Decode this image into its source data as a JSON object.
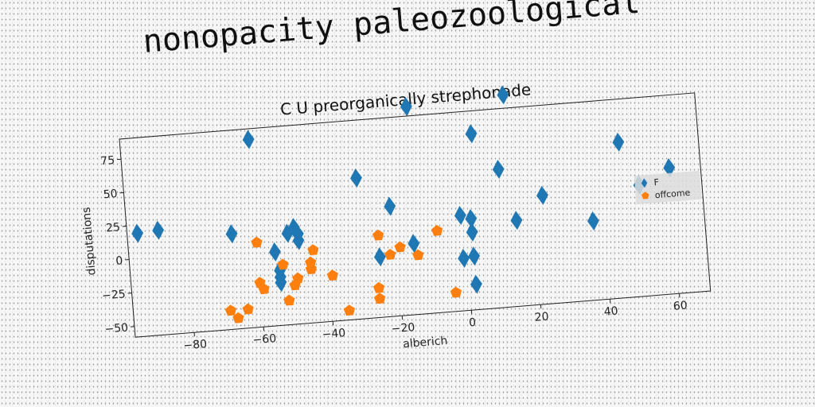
{
  "figure": {
    "suptitle": "nonopacity paleozoological"
  },
  "chart_data": {
    "type": "scatter",
    "title": "C U preorganically strephonade",
    "xlabel": "alberich",
    "ylabel": "disputations",
    "xlim": [
      -97,
      69
    ],
    "ylim": [
      -58,
      90
    ],
    "xticks": [
      -80,
      -60,
      -40,
      -20,
      0,
      20,
      40,
      60
    ],
    "yticks": [
      -50,
      -25,
      0,
      25,
      50,
      75
    ],
    "grid": false,
    "legend": {
      "placement": "right"
    },
    "series": [
      {
        "name": "F",
        "marker": "diamond",
        "color": "#1f77b4",
        "points": [
          {
            "x": -94,
            "y": 19
          },
          {
            "x": -88,
            "y": 20
          },
          {
            "x": -67,
            "y": 13
          },
          {
            "x": -60,
            "y": 82
          },
          {
            "x": -55,
            "y": -3
          },
          {
            "x": -54,
            "y": -17
          },
          {
            "x": -54,
            "y": -22
          },
          {
            "x": -54,
            "y": -26
          },
          {
            "x": -51,
            "y": 10
          },
          {
            "x": -49,
            "y": 14
          },
          {
            "x": -48,
            "y": 9
          },
          {
            "x": -48,
            "y": 4
          },
          {
            "x": -30,
            "y": 47
          },
          {
            "x": -25,
            "y": -13
          },
          {
            "x": -21,
            "y": 24
          },
          {
            "x": -15,
            "y": -5
          },
          {
            "x": -14,
            "y": 97
          },
          {
            "x": -1,
            "y": 13
          },
          {
            "x": -1,
            "y": -19
          },
          {
            "x": 2,
            "y": 10
          },
          {
            "x": 2,
            "y": 0
          },
          {
            "x": 2,
            "y": -18
          },
          {
            "x": 2,
            "y": -39
          },
          {
            "x": 4,
            "y": 73
          },
          {
            "x": 11,
            "y": 45
          },
          {
            "x": 14,
            "y": 100
          },
          {
            "x": 15,
            "y": 6
          },
          {
            "x": 23,
            "y": 23
          },
          {
            "x": 37,
            "y": 1
          },
          {
            "x": 46,
            "y": 58
          },
          {
            "x": 51,
            "y": 25
          },
          {
            "x": 60,
            "y": 36
          }
        ]
      },
      {
        "name": "offcome",
        "marker": "pentagon",
        "color": "#ff7f0e",
        "points": [
          {
            "x": -69,
            "y": -44
          },
          {
            "x": -67,
            "y": -50
          },
          {
            "x": -64,
            "y": -44
          },
          {
            "x": -60,
            "y": 5
          },
          {
            "x": -60,
            "y": -25
          },
          {
            "x": -59,
            "y": -30
          },
          {
            "x": -53,
            "y": -13
          },
          {
            "x": -52,
            "y": -40
          },
          {
            "x": -50,
            "y": -29
          },
          {
            "x": -49,
            "y": -24
          },
          {
            "x": -45,
            "y": -18
          },
          {
            "x": -45,
            "y": -13
          },
          {
            "x": -44,
            "y": -4
          },
          {
            "x": -39,
            "y": -24
          },
          {
            "x": -35,
            "y": -51
          },
          {
            "x": -26,
            "y": -44
          },
          {
            "x": -26,
            "y": -36
          },
          {
            "x": -25,
            "y": 3
          },
          {
            "x": -22,
            "y": -12
          },
          {
            "x": -19,
            "y": -7
          },
          {
            "x": -14,
            "y": -14
          },
          {
            "x": -8,
            "y": 3
          },
          {
            "x": -4,
            "y": -44
          }
        ]
      }
    ]
  }
}
